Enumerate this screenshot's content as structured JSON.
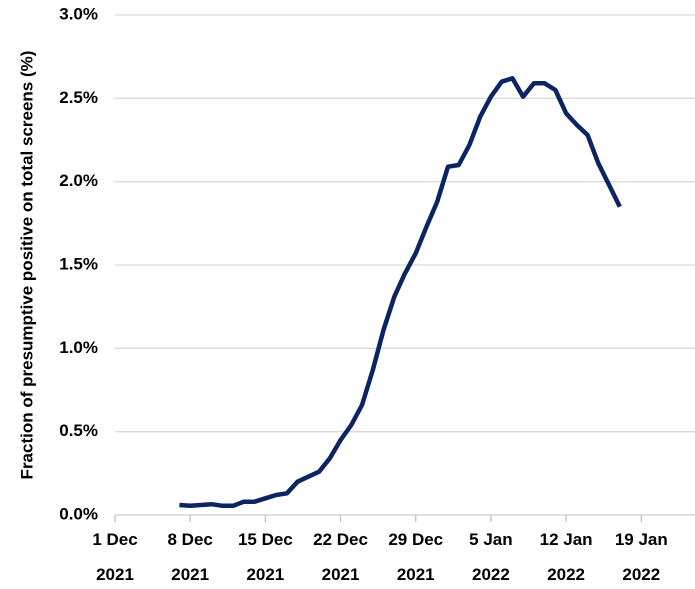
{
  "chart_data": {
    "type": "line",
    "y_label": "Fraction of presumptive positive on total screens (%)",
    "x": [
      "2021-12-07",
      "2021-12-08",
      "2021-12-09",
      "2021-12-10",
      "2021-12-11",
      "2021-12-12",
      "2021-12-13",
      "2021-12-14",
      "2021-12-15",
      "2021-12-16",
      "2021-12-17",
      "2021-12-18",
      "2021-12-19",
      "2021-12-20",
      "2021-12-21",
      "2021-12-22",
      "2021-12-23",
      "2021-12-24",
      "2021-12-25",
      "2021-12-26",
      "2021-12-27",
      "2021-12-28",
      "2021-12-29",
      "2021-12-30",
      "2021-12-31",
      "2022-01-01",
      "2022-01-02",
      "2022-01-03",
      "2022-01-04",
      "2022-01-05",
      "2022-01-06",
      "2022-01-07",
      "2022-01-08",
      "2022-01-09",
      "2022-01-10",
      "2022-01-11",
      "2022-01-12",
      "2022-01-13",
      "2022-01-14",
      "2022-01-15",
      "2022-01-16",
      "2022-01-17"
    ],
    "values": [
      0.06,
      0.055,
      0.06,
      0.065,
      0.055,
      0.055,
      0.08,
      0.08,
      0.1,
      0.12,
      0.13,
      0.2,
      0.23,
      0.26,
      0.34,
      0.45,
      0.54,
      0.66,
      0.87,
      1.11,
      1.31,
      1.45,
      1.57,
      1.73,
      1.88,
      2.09,
      2.1,
      2.22,
      2.39,
      2.51,
      2.6,
      2.62,
      2.51,
      2.59,
      2.59,
      2.55,
      2.41,
      2.34,
      2.28,
      2.11,
      1.98,
      1.85
    ],
    "color": "#0c2461",
    "xlim": [
      "2021-12-01",
      "2022-01-24"
    ],
    "xticks": [
      {
        "value": "2021-12-01",
        "label": "1 Dec\n2021"
      },
      {
        "value": "2021-12-08",
        "label": "8 Dec\n2021"
      },
      {
        "value": "2021-12-15",
        "label": "15 Dec\n2021"
      },
      {
        "value": "2021-12-22",
        "label": "22 Dec\n2021"
      },
      {
        "value": "2021-12-29",
        "label": "29 Dec\n2021"
      },
      {
        "value": "2022-01-05",
        "label": "5 Jan\n2022"
      },
      {
        "value": "2022-01-12",
        "label": "12 Jan\n2022"
      },
      {
        "value": "2022-01-19",
        "label": "19 Jan\n2022"
      }
    ],
    "ylim": [
      0,
      3
    ],
    "yticks": [
      {
        "value": 0,
        "label": "0.0%"
      },
      {
        "value": 0.5,
        "label": "0.5%"
      },
      {
        "value": 1,
        "label": "1.0%"
      },
      {
        "value": 1.5,
        "label": "1.5%"
      },
      {
        "value": 2,
        "label": "2.0%"
      },
      {
        "value": 2.5,
        "label": "2.5%"
      },
      {
        "value": 3,
        "label": "3.0%"
      }
    ],
    "grid": true
  }
}
